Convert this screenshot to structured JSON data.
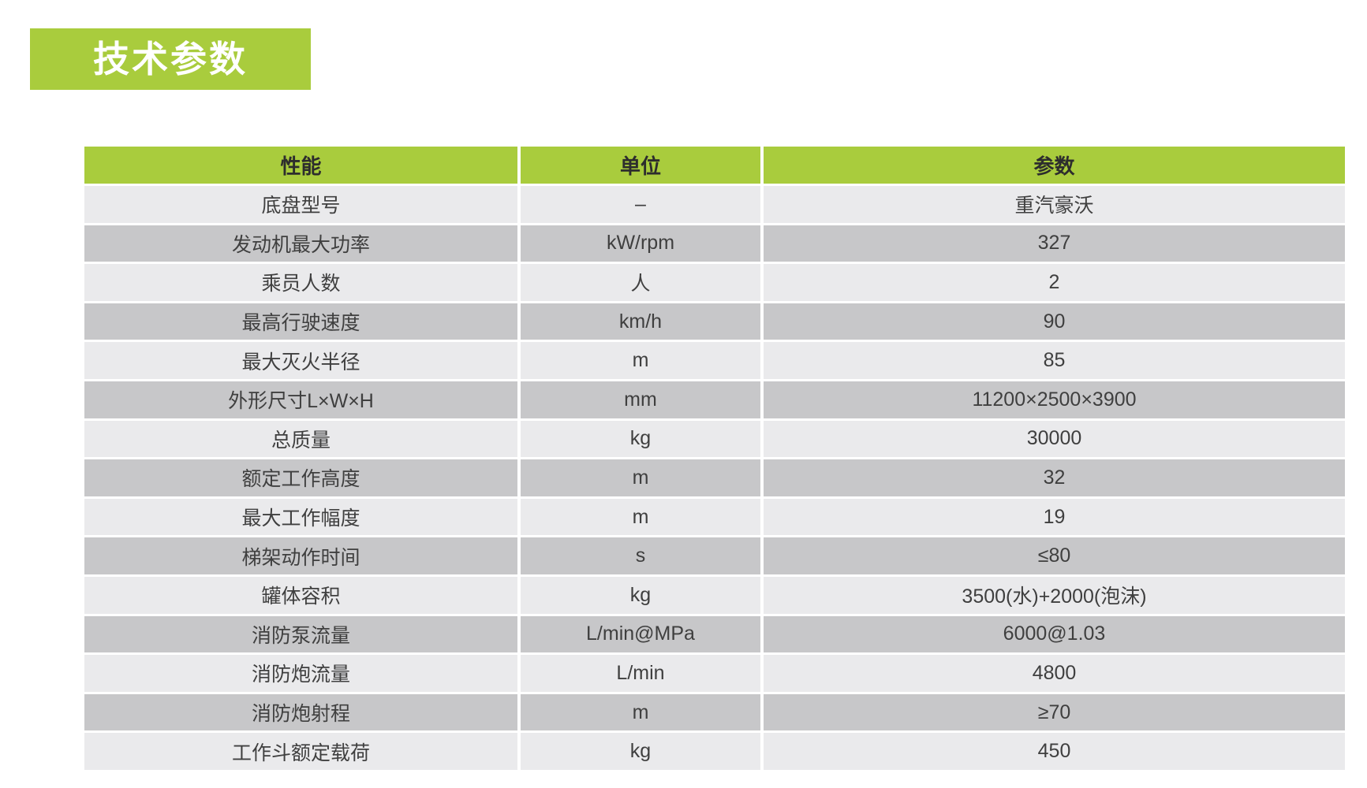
{
  "theme": {
    "page_bg": "#ffffff",
    "green": "#a9cc3d",
    "row_light_bg": "#eaeaec",
    "row_dark_bg": "#c7c7c9",
    "header_text_color": "#2d2d2d",
    "body_text_color": "#3f3f3f",
    "title_text_color": "#ffffff"
  },
  "title": {
    "text": "技术参数"
  },
  "table": {
    "headers": [
      "性能",
      "单位",
      "参数"
    ],
    "rows": [
      {
        "name": "底盘型号",
        "unit": "–",
        "value": "重汽豪沃"
      },
      {
        "name": "发动机最大功率",
        "unit": "kW/rpm",
        "value": "327"
      },
      {
        "name": "乘员人数",
        "unit": "人",
        "value": "2"
      },
      {
        "name": "最高行驶速度",
        "unit": "km/h",
        "value": "90"
      },
      {
        "name": "最大灭火半径",
        "unit": "m",
        "value": "85"
      },
      {
        "name": "外形尺寸L×W×H",
        "unit": "mm",
        "value": "11200×2500×3900"
      },
      {
        "name": "总质量",
        "unit": "kg",
        "value": "30000"
      },
      {
        "name": "额定工作高度",
        "unit": "m",
        "value": "32"
      },
      {
        "name": "最大工作幅度",
        "unit": "m",
        "value": "19"
      },
      {
        "name": "梯架动作时间",
        "unit": "s",
        "value": "≤80"
      },
      {
        "name": "罐体容积",
        "unit": "kg",
        "value": "3500(水)+2000(泡沫)"
      },
      {
        "name": "消防泵流量",
        "unit": "L/min@MPa",
        "value": "6000@1.03"
      },
      {
        "name": "消防炮流量",
        "unit": "L/min",
        "value": "4800"
      },
      {
        "name": "消防炮射程",
        "unit": "m",
        "value": "≥70"
      },
      {
        "name": "工作斗额定载荷",
        "unit": "kg",
        "value": "450"
      }
    ]
  }
}
